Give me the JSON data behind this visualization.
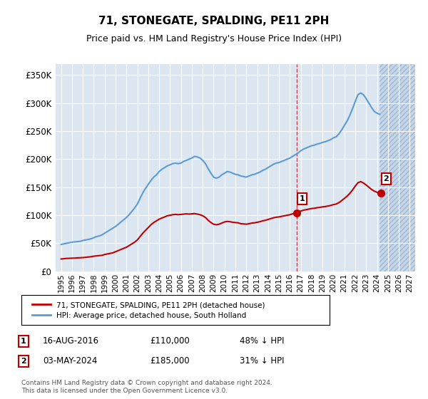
{
  "title": "71, STONEGATE, SPALDING, PE11 2PH",
  "subtitle": "Price paid vs. HM Land Registry's House Price Index (HPI)",
  "legend_line1": "71, STONEGATE, SPALDING, PE11 2PH (detached house)",
  "legend_line2": "HPI: Average price, detached house, South Holland",
  "annotation1": {
    "label": "1",
    "date": "16-AUG-2016",
    "price": "£110,000",
    "pct": "48% ↓ HPI",
    "x_year": 2016.62
  },
  "annotation2": {
    "label": "2",
    "date": "03-MAY-2024",
    "price": "£185,000",
    "pct": "31% ↓ HPI",
    "x_year": 2024.34
  },
  "footer": "Contains HM Land Registry data © Crown copyright and database right 2024.\nThis data is licensed under the Open Government Licence v3.0.",
  "hpi_color": "#5b9bd5",
  "price_color": "#c00000",
  "bg_plot": "#dce6f1",
  "bg_hatch": "#c5d6e8",
  "yticks": [
    0,
    50000,
    100000,
    150000,
    200000,
    250000,
    300000,
    350000
  ],
  "ylim": [
    0,
    370000
  ],
  "xlim_left": 1994.5,
  "xlim_right": 2027.5,
  "hpi_years": [
    1995,
    1995.25,
    1995.5,
    1995.75,
    1996,
    1996.25,
    1996.5,
    1996.75,
    1997,
    1997.25,
    1997.5,
    1997.75,
    1998,
    1998.25,
    1998.5,
    1998.75,
    1999,
    1999.25,
    1999.5,
    1999.75,
    2000,
    2000.25,
    2000.5,
    2000.75,
    2001,
    2001.25,
    2001.5,
    2001.75,
    2002,
    2002.25,
    2002.5,
    2002.75,
    2003,
    2003.25,
    2003.5,
    2003.75,
    2004,
    2004.25,
    2004.5,
    2004.75,
    2005,
    2005.25,
    2005.5,
    2005.75,
    2006,
    2006.25,
    2006.5,
    2006.75,
    2007,
    2007.25,
    2007.5,
    2007.75,
    2008,
    2008.25,
    2008.5,
    2008.75,
    2009,
    2009.25,
    2009.5,
    2009.75,
    2010,
    2010.25,
    2010.5,
    2010.75,
    2011,
    2011.25,
    2011.5,
    2011.75,
    2012,
    2012.25,
    2012.5,
    2012.75,
    2013,
    2013.25,
    2013.5,
    2013.75,
    2014,
    2014.25,
    2014.5,
    2014.75,
    2015,
    2015.25,
    2015.5,
    2015.75,
    2016,
    2016.25,
    2016.5,
    2016.75,
    2017,
    2017.25,
    2017.5,
    2017.75,
    2018,
    2018.25,
    2018.5,
    2018.75,
    2019,
    2019.25,
    2019.5,
    2019.75,
    2020,
    2020.25,
    2020.5,
    2020.75,
    2021,
    2021.25,
    2021.5,
    2021.75,
    2022,
    2022.25,
    2022.5,
    2022.75,
    2023,
    2023.25,
    2023.5,
    2023.75,
    2024,
    2024.25
  ],
  "hpi_values": [
    48000,
    49000,
    50000,
    51000,
    52000,
    52500,
    53000,
    53500,
    55000,
    56000,
    57000,
    58000,
    60000,
    62000,
    63000,
    65000,
    68000,
    71000,
    74000,
    77000,
    80000,
    84000,
    88000,
    92000,
    96000,
    101000,
    107000,
    113000,
    120000,
    130000,
    140000,
    148000,
    155000,
    162000,
    168000,
    172000,
    178000,
    182000,
    185000,
    188000,
    190000,
    192000,
    193000,
    192000,
    193000,
    196000,
    198000,
    200000,
    202000,
    205000,
    204000,
    202000,
    198000,
    192000,
    183000,
    175000,
    168000,
    166000,
    168000,
    172000,
    175000,
    178000,
    177000,
    175000,
    173000,
    172000,
    170000,
    169000,
    168000,
    170000,
    172000,
    173000,
    175000,
    177000,
    180000,
    182000,
    185000,
    188000,
    191000,
    193000,
    194000,
    196000,
    198000,
    200000,
    202000,
    205000,
    208000,
    211000,
    215000,
    218000,
    220000,
    222000,
    224000,
    225000,
    227000,
    228000,
    230000,
    231000,
    233000,
    235000,
    238000,
    240000,
    245000,
    252000,
    260000,
    268000,
    278000,
    290000,
    303000,
    315000,
    318000,
    315000,
    308000,
    300000,
    292000,
    285000,
    282000,
    280000
  ],
  "price_years": [
    1995,
    1995.25,
    1995.5,
    1995.75,
    1996,
    1996.25,
    1996.5,
    1996.75,
    1997,
    1997.25,
    1997.5,
    1997.75,
    1998,
    1998.25,
    1998.5,
    1998.75,
    1999,
    1999.25,
    1999.5,
    1999.75,
    2000,
    2000.25,
    2000.5,
    2000.75,
    2001,
    2001.25,
    2001.5,
    2001.75,
    2002,
    2002.25,
    2002.5,
    2002.75,
    2003,
    2003.25,
    2003.5,
    2003.75,
    2004,
    2004.25,
    2004.5,
    2004.75,
    2005,
    2005.25,
    2005.5,
    2005.75,
    2006,
    2006.25,
    2006.5,
    2006.75,
    2007,
    2007.25,
    2007.5,
    2007.75,
    2008,
    2008.25,
    2008.5,
    2008.75,
    2009,
    2009.25,
    2009.5,
    2009.75,
    2010,
    2010.25,
    2010.5,
    2010.75,
    2011,
    2011.25,
    2011.5,
    2011.75,
    2012,
    2012.25,
    2012.5,
    2012.75,
    2013,
    2013.25,
    2013.5,
    2013.75,
    2014,
    2014.25,
    2014.5,
    2014.75,
    2015,
    2015.25,
    2015.5,
    2015.75,
    2016,
    2016.25,
    2016.5,
    2016.75,
    2017,
    2017.25,
    2017.5,
    2017.75,
    2018,
    2018.25,
    2018.5,
    2018.75,
    2019,
    2019.25,
    2019.5,
    2019.75,
    2020,
    2020.25,
    2020.5,
    2020.75,
    2021,
    2021.25,
    2021.5,
    2021.75,
    2022,
    2022.25,
    2022.5,
    2022.75,
    2023,
    2023.25,
    2023.5,
    2023.75,
    2024,
    2024.25
  ],
  "price_values": [
    22000,
    22500,
    23000,
    23200,
    23400,
    23600,
    24000,
    24200,
    24500,
    25000,
    25500,
    26000,
    27000,
    27500,
    28000,
    28500,
    30000,
    31000,
    32000,
    33000,
    35000,
    37000,
    39000,
    41000,
    43000,
    46000,
    49000,
    52000,
    56000,
    62000,
    68000,
    73000,
    78000,
    83000,
    87000,
    90000,
    93000,
    95000,
    97000,
    99000,
    100000,
    101000,
    101500,
    101000,
    101500,
    102000,
    102500,
    102000,
    102500,
    103000,
    102000,
    101000,
    99000,
    96000,
    91000,
    87000,
    84000,
    83000,
    84000,
    86000,
    88000,
    89000,
    88500,
    87500,
    87000,
    86500,
    85000,
    84500,
    84000,
    85000,
    86000,
    86500,
    87500,
    88500,
    90000,
    91000,
    92500,
    94000,
    95500,
    96500,
    97000,
    98000,
    99000,
    100000,
    101000,
    102500,
    104000,
    105500,
    107500,
    109000,
    110000,
    111000,
    112000,
    112500,
    113500,
    114000,
    115000,
    115500,
    116500,
    117500,
    119000,
    120000,
    122500,
    126000,
    130000,
    134000,
    139000,
    145000,
    152000,
    158000,
    160000,
    157500,
    154000,
    150000,
    146000,
    143000,
    141000,
    140000
  ]
}
